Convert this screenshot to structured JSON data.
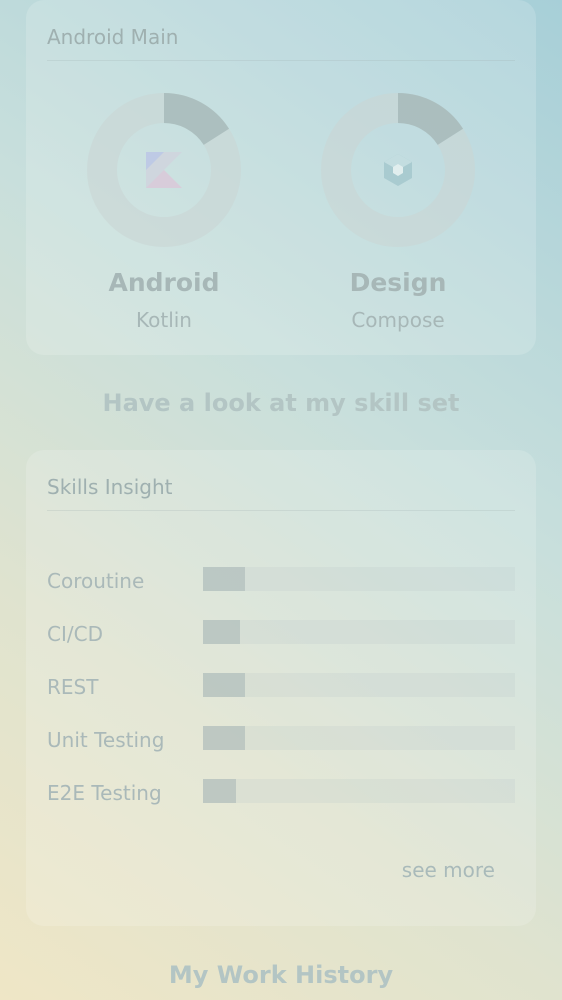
{
  "android_main": {
    "title": "Android Main",
    "items": [
      {
        "title": "Android",
        "subtitle": "Kotlin",
        "icon": "kotlin-logo-icon",
        "progress": 0.16
      },
      {
        "title": "Design",
        "subtitle": "Compose",
        "icon": "compose-hexagon-icon",
        "progress": 0.16
      }
    ]
  },
  "skills_heading": "Have a look at my skill set",
  "skills_insight": {
    "title": "Skills Insight",
    "skills": [
      {
        "label": "Coroutine",
        "level": 0.135
      },
      {
        "label": "CI/CD",
        "level": 0.12
      },
      {
        "label": "REST",
        "level": 0.135
      },
      {
        "label": "Unit Testing",
        "level": 0.135
      },
      {
        "label": "E2E Testing",
        "level": 0.105
      }
    ],
    "see_more": "see more"
  },
  "work_history_heading": "My Work History",
  "colors": {
    "ring_track": "#c4d3d1",
    "ring_arc": "#9fb3b3",
    "muted_text": "#a7b7b7"
  }
}
